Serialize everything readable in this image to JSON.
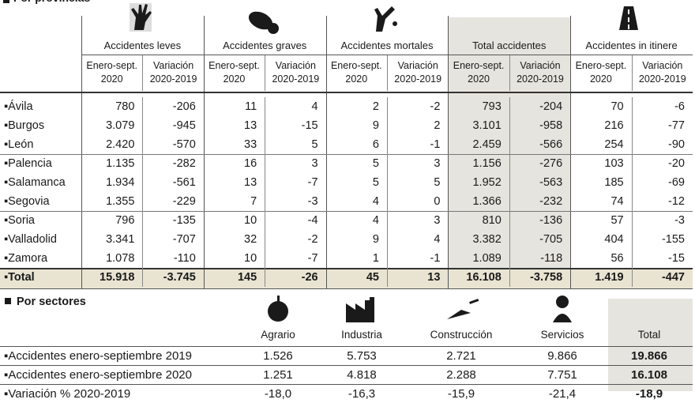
{
  "provincias": {
    "title": "Por provincias",
    "groups": [
      "Accidentes leves",
      "Accidentes graves",
      "Accidentes mortales",
      "Total accidentes",
      "Accidentes in itinere"
    ],
    "subheaders": [
      "Enero-sept.\n2020",
      "Variación\n2020-2019"
    ],
    "rows": [
      {
        "name": "Ávila",
        "values": [
          "780",
          "-206",
          "11",
          "4",
          "2",
          "-2",
          "793",
          "-204",
          "70",
          "-6"
        ]
      },
      {
        "name": "Burgos",
        "values": [
          "3.079",
          "-945",
          "13",
          "-15",
          "9",
          "2",
          "3.101",
          "-958",
          "216",
          "-77"
        ]
      },
      {
        "name": "León",
        "values": [
          "2.420",
          "-570",
          "33",
          "5",
          "6",
          "-1",
          "2.459",
          "-566",
          "254",
          "-90"
        ]
      },
      {
        "name": "Palencia",
        "values": [
          "1.135",
          "-282",
          "16",
          "3",
          "5",
          "3",
          "1.156",
          "-276",
          "103",
          "-20"
        ]
      },
      {
        "name": "Salamanca",
        "values": [
          "1.934",
          "-561",
          "13",
          "-7",
          "5",
          "5",
          "1.952",
          "-563",
          "185",
          "-69"
        ]
      },
      {
        "name": "Segovia",
        "values": [
          "1.355",
          "-229",
          "7",
          "-3",
          "4",
          "0",
          "1.366",
          "-232",
          "74",
          "-12"
        ]
      },
      {
        "name": "Soria",
        "values": [
          "796",
          "-135",
          "10",
          "-4",
          "4",
          "3",
          "810",
          "-136",
          "57",
          "-3"
        ]
      },
      {
        "name": "Valladolid",
        "values": [
          "3.341",
          "-707",
          "32",
          "-2",
          "9",
          "4",
          "3.382",
          "-705",
          "404",
          "-155"
        ]
      },
      {
        "name": "Zamora",
        "values": [
          "1.078",
          "-110",
          "10",
          "-7",
          "1",
          "-1",
          "1.089",
          "-118",
          "56",
          "-15"
        ]
      },
      {
        "name": "Total",
        "values": [
          "15.918",
          "-3.745",
          "145",
          "-26",
          "45",
          "13",
          "16.108",
          "-3.758",
          "1.419",
          "-447"
        ]
      }
    ]
  },
  "sectores": {
    "title": "Por sectores",
    "columns": [
      "Agrario",
      "Industria",
      "Construcción",
      "Servicios",
      "Total"
    ],
    "rows": [
      {
        "name": "Accidentes enero-septiembre 2019",
        "values": [
          "1.526",
          "5.753",
          "2.721",
          "9.866",
          "19.866"
        ]
      },
      {
        "name": "Accidentes enero-septiembre 2020",
        "values": [
          "1.251",
          "4.818",
          "2.288",
          "7.751",
          "16.108"
        ]
      },
      {
        "name": "Variación % 2020-2019",
        "values": [
          "-18,0",
          "-16,3",
          "-15,9",
          "-21,4",
          "-18,9"
        ]
      }
    ]
  }
}
